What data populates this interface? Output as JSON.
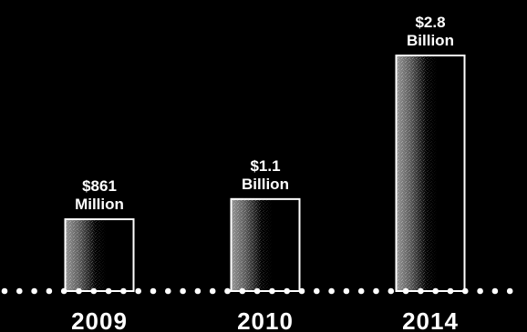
{
  "chart_data": {
    "type": "bar",
    "categories": [
      "2009",
      "2010",
      "2014"
    ],
    "values": [
      0.861,
      1.1,
      2.8
    ],
    "value_unit": "billion USD",
    "data_labels": [
      [
        "$861",
        "Million"
      ],
      [
        "$1.1",
        "Billion"
      ],
      [
        "$2.8",
        "Billion"
      ]
    ],
    "title": "",
    "xlabel": "",
    "ylabel": "",
    "ylim": [
      0,
      2.8
    ],
    "grid": false,
    "legend": "none",
    "colors": {
      "background": "#000000",
      "bar_outline": "#ffffff",
      "bar_fill_dark": "#1a1a1a",
      "bar_fill_light": "#9a9a9a",
      "text": "#ffffff",
      "axis_dots": "#ffffff"
    }
  }
}
